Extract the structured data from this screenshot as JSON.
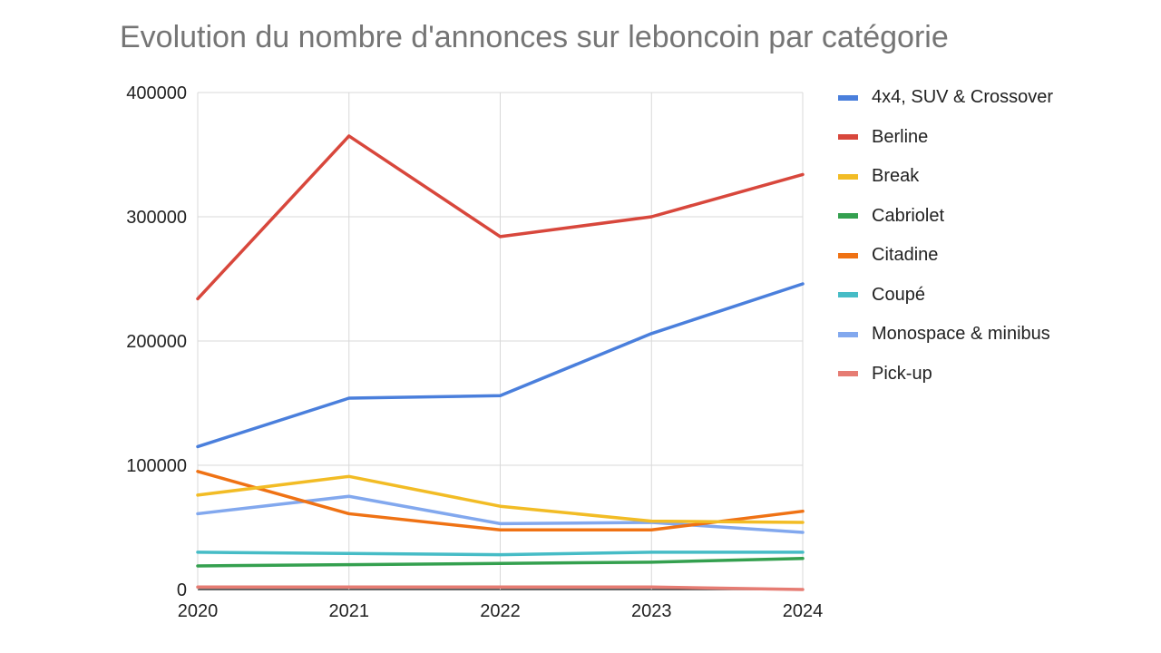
{
  "chart_data": {
    "type": "line",
    "title": "Evolution du nombre d'annonces sur leboncoin par catégorie",
    "xlabel": "",
    "ylabel": "",
    "x": [
      "2020",
      "2021",
      "2022",
      "2023",
      "2024"
    ],
    "ylim": [
      0,
      400000
    ],
    "yticks": [
      "0",
      "100000",
      "200000",
      "300000",
      "400000"
    ],
    "grid": true,
    "legend_position": "right",
    "series": [
      {
        "name": "4x4, SUV & Crossover",
        "color": "#4a7fdc",
        "values": [
          115000,
          154000,
          156000,
          206000,
          246000
        ]
      },
      {
        "name": "Berline",
        "color": "#d8473c",
        "values": [
          234000,
          365000,
          284000,
          300000,
          334000
        ]
      },
      {
        "name": "Break",
        "color": "#f2bc25",
        "values": [
          76000,
          91000,
          67000,
          55000,
          54000
        ]
      },
      {
        "name": "Cabriolet",
        "color": "#34a04f",
        "values": [
          19000,
          20000,
          21000,
          22000,
          25000
        ]
      },
      {
        "name": "Citadine",
        "color": "#ef7214",
        "values": [
          95000,
          61000,
          48000,
          48000,
          63000
        ]
      },
      {
        "name": "Coupé",
        "color": "#46bcc6",
        "values": [
          30000,
          29000,
          28000,
          30000,
          30000
        ]
      },
      {
        "name": "Monospace & minibus",
        "color": "#82a8ee",
        "values": [
          61000,
          75000,
          53000,
          54000,
          46000
        ]
      },
      {
        "name": "Pick-up",
        "color": "#e67c73",
        "values": [
          2000,
          2000,
          2000,
          2000,
          0
        ]
      }
    ]
  }
}
